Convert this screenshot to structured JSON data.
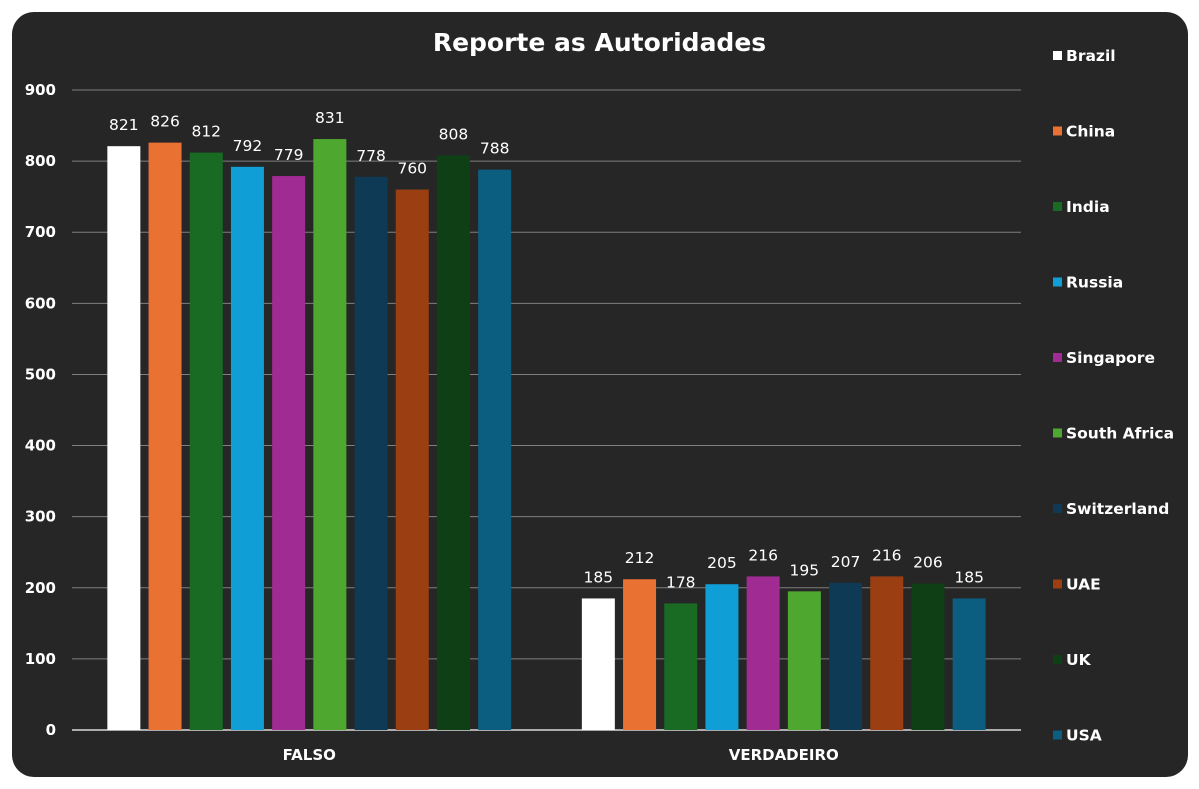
{
  "chart_data": {
    "type": "bar",
    "title": "Reporte as Autoridades",
    "xlabel": "",
    "ylabel": "",
    "ylim": [
      0,
      900
    ],
    "yticks": [
      0,
      100,
      200,
      300,
      400,
      500,
      600,
      700,
      800,
      900
    ],
    "grid": true,
    "legend_position": "right",
    "categories": [
      "FALSO",
      "VERDADEIRO"
    ],
    "series": [
      {
        "name": "Brazil",
        "color": "#ffffff",
        "values": [
          821,
          185
        ]
      },
      {
        "name": "China",
        "color": "#e97132",
        "values": [
          826,
          212
        ]
      },
      {
        "name": "India",
        "color": "#196b24",
        "values": [
          812,
          178
        ]
      },
      {
        "name": "Russia",
        "color": "#0f9ed5",
        "values": [
          792,
          205
        ]
      },
      {
        "name": "Singapore",
        "color": "#a02b93",
        "values": [
          779,
          216
        ]
      },
      {
        "name": "South Africa",
        "color": "#4ea72e",
        "values": [
          831,
          195
        ]
      },
      {
        "name": "Switzerland",
        "color": "#0e3a55",
        "values": [
          778,
          207
        ]
      },
      {
        "name": "UAE",
        "color": "#9b3f12",
        "values": [
          760,
          216
        ]
      },
      {
        "name": "UK",
        "color": "#0f3f15",
        "values": [
          808,
          206
        ]
      },
      {
        "name": "USA",
        "color": "#0b5e80",
        "values": [
          788,
          185
        ]
      }
    ]
  }
}
